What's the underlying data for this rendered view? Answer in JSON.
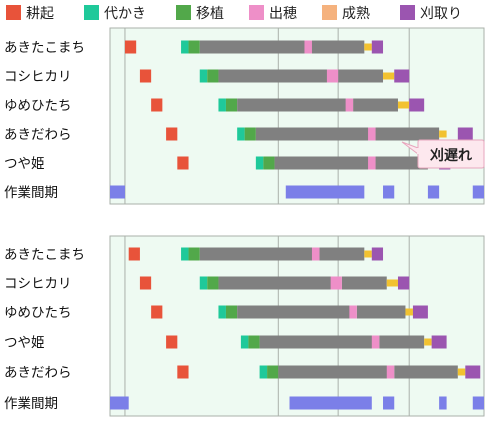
{
  "legend": [
    {
      "name": "耕起",
      "color": "#e8533a"
    },
    {
      "name": "代かき",
      "color": "#1fc99a"
    },
    {
      "name": "移植",
      "color": "#52a84a"
    },
    {
      "name": "出穂",
      "color": "#ee8fc8"
    },
    {
      "name": "成熟",
      "color": "#f5b27e"
    },
    {
      "name": "刈取り",
      "color": "#9b55b0"
    }
  ],
  "colors": {
    "plot_bg": "#eefaf2",
    "grid": "#aab0aa",
    "growth_bar": "#808080",
    "mature_marker": "#f2c230",
    "idle_period": "#7b7fe8",
    "callout_bg": "#fde8ee",
    "callout_border": "#e7a6bd"
  },
  "callout": {
    "text": "刈遅れ"
  },
  "chart_data": [
    {
      "type": "gantt",
      "name": "",
      "x_range": [
        0,
        100
      ],
      "rows": [
        {
          "label": "あきたこまち",
          "koki": [
            4,
            7
          ],
          "shirokaki": [
            19,
            21
          ],
          "ishoku": [
            21,
            24
          ],
          "growth": [
            24,
            54
          ],
          "shussui": [
            52,
            54
          ],
          "growth2": [
            54,
            68
          ],
          "seijuku": [
            68,
            70
          ],
          "karitori": [
            70,
            73
          ]
        },
        {
          "label": "コシヒカリ",
          "koki": [
            8,
            11
          ],
          "shirokaki": [
            24,
            26
          ],
          "ishoku": [
            26,
            29
          ],
          "growth": [
            29,
            60
          ],
          "shussui": [
            58,
            61
          ],
          "growth2": [
            61,
            73
          ],
          "seijuku": [
            73,
            76
          ],
          "karitori": [
            76,
            80
          ]
        },
        {
          "label": "ゆめひたち",
          "koki": [
            11,
            14
          ],
          "shirokaki": [
            29,
            31
          ],
          "ishoku": [
            31,
            34
          ],
          "growth": [
            34,
            64
          ],
          "shussui": [
            63,
            65
          ],
          "growth2": [
            65,
            77
          ],
          "seijuku": [
            77,
            80
          ],
          "karitori": [
            80,
            84
          ]
        },
        {
          "label": "あきだわら",
          "koki": [
            15,
            18
          ],
          "shirokaki": [
            34,
            36
          ],
          "ishoku": [
            36,
            39
          ],
          "growth": [
            39,
            70
          ],
          "shussui": [
            69,
            71
          ],
          "growth2": [
            71,
            88
          ],
          "seijuku": [
            88,
            90
          ],
          "karitori": [
            93,
            97
          ]
        },
        {
          "label": "つや姫",
          "koki": [
            18,
            21
          ],
          "shirokaki": [
            39,
            41
          ],
          "ishoku": [
            41,
            44
          ],
          "growth": [
            44,
            70
          ],
          "shussui": [
            69,
            71
          ],
          "growth2": [
            71,
            85
          ],
          "seijuku": [
            85,
            88
          ],
          "karitori": [
            88,
            91
          ]
        }
      ],
      "idle_periods": [
        [
          0,
          4
        ],
        [
          47,
          68
        ],
        [
          73,
          76
        ],
        [
          85,
          88
        ],
        [
          97,
          113
        ]
      ],
      "idle_label": "作業間期"
    },
    {
      "type": "gantt",
      "name": "",
      "x_range": [
        0,
        100
      ],
      "rows": [
        {
          "label": "あきたこまち",
          "koki": [
            5,
            8
          ],
          "shirokaki": [
            19,
            21
          ],
          "ishoku": [
            21,
            24
          ],
          "growth": [
            24,
            55
          ],
          "shussui": [
            54,
            56
          ],
          "growth2": [
            56,
            68
          ],
          "seijuku": [
            68,
            70
          ],
          "karitori": [
            70,
            73
          ]
        },
        {
          "label": "コシヒカリ",
          "koki": [
            8,
            11
          ],
          "shirokaki": [
            24,
            26
          ],
          "ishoku": [
            26,
            29
          ],
          "growth": [
            29,
            60
          ],
          "shussui": [
            59,
            62
          ],
          "growth2": [
            62,
            74
          ],
          "seijuku": [
            74,
            77
          ],
          "karitori": [
            77,
            80
          ]
        },
        {
          "label": "ゆめひたち",
          "koki": [
            11,
            14
          ],
          "shirokaki": [
            29,
            31
          ],
          "ishoku": [
            31,
            34
          ],
          "growth": [
            34,
            65
          ],
          "shussui": [
            64,
            66
          ],
          "growth2": [
            66,
            79
          ],
          "seijuku": [
            79,
            81
          ],
          "karitori": [
            81,
            85
          ]
        },
        {
          "label": "つや姫",
          "koki": [
            15,
            18
          ],
          "shirokaki": [
            35,
            37
          ],
          "ishoku": [
            37,
            40
          ],
          "growth": [
            40,
            71
          ],
          "shussui": [
            70,
            72
          ],
          "growth2": [
            72,
            84
          ],
          "seijuku": [
            84,
            86
          ],
          "karitori": [
            86,
            90
          ]
        },
        {
          "label": "あきだわら",
          "koki": [
            18,
            21
          ],
          "shirokaki": [
            40,
            42
          ],
          "ishoku": [
            42,
            45
          ],
          "growth": [
            45,
            75
          ],
          "shussui": [
            74,
            76
          ],
          "growth2": [
            76,
            93
          ],
          "seijuku": [
            93,
            95
          ],
          "karitori": [
            95,
            99
          ]
        }
      ],
      "idle_periods": [
        [
          0,
          5
        ],
        [
          48,
          70
        ],
        [
          73,
          76
        ],
        [
          88,
          90
        ],
        [
          97,
          113
        ]
      ],
      "idle_label": "作業間期"
    }
  ]
}
